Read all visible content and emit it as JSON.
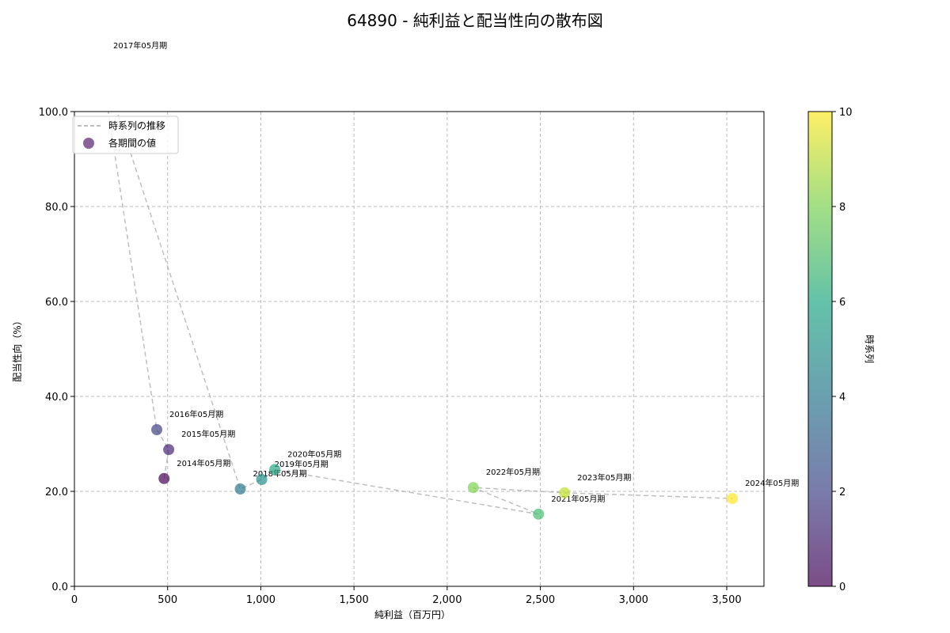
{
  "chart_data": {
    "type": "scatter",
    "title": "64890 - 純利益と配当性向の散布図",
    "xlabel": "純利益（百万円）",
    "ylabel": "配当性向（%）",
    "xlim": [
      -50,
      3700
    ],
    "ylim": [
      0,
      100
    ],
    "xticks": [
      0,
      500,
      1000,
      1500,
      2000,
      2500,
      3000,
      3500
    ],
    "xtick_labels": [
      "0",
      "500",
      "1,000",
      "1,500",
      "2,000",
      "2,500",
      "3,000",
      "3,500"
    ],
    "yticks": [
      0,
      20,
      40,
      60,
      80,
      100
    ],
    "ytick_labels": [
      "0.0",
      "20.0",
      "40.0",
      "60.0",
      "80.0",
      "100.0"
    ],
    "grid": true,
    "legend": {
      "position": "upper left",
      "entries": [
        "時系列の推移",
        "各期間の値"
      ]
    },
    "colorbar": {
      "label": "時系列",
      "range": [
        0,
        10
      ],
      "ticks": [
        0,
        2,
        4,
        6,
        8,
        10
      ],
      "colormap": "viridis"
    },
    "points": [
      {
        "label": "2014年05月期",
        "x": 481,
        "y": 22.7,
        "t": 0
      },
      {
        "label": "2015年05月期",
        "x": 506,
        "y": 28.8,
        "t": 1
      },
      {
        "label": "2016年05月期",
        "x": 442,
        "y": 33.0,
        "t": 2
      },
      {
        "label": "2017年05月期",
        "x": 140,
        "y": 110.7,
        "t": 3
      },
      {
        "label": "2018年05月期",
        "x": 890,
        "y": 20.5,
        "t": 4
      },
      {
        "label": "2019年05月期",
        "x": 1005,
        "y": 22.5,
        "t": 5
      },
      {
        "label": "2020年05月期",
        "x": 1075,
        "y": 24.6,
        "t": 6
      },
      {
        "label": "2021年05月期",
        "x": 2490,
        "y": 15.2,
        "t": 7
      },
      {
        "label": "2022年05月期",
        "x": 2140,
        "y": 20.8,
        "t": 8
      },
      {
        "label": "2023年05月期",
        "x": 2630,
        "y": 19.7,
        "t": 9
      },
      {
        "label": "2024年05月期",
        "x": 3530,
        "y": 18.5,
        "t": 10
      }
    ]
  }
}
